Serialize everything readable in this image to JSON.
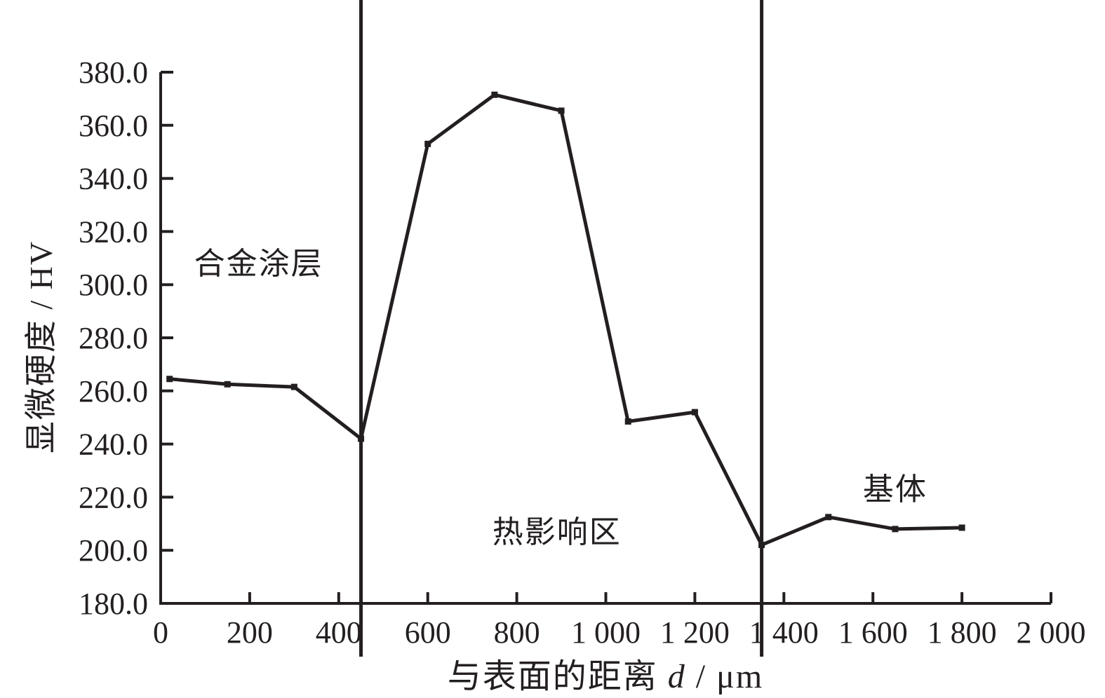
{
  "page": {
    "background_color": "#ffffff",
    "ink_color": "#231f20"
  },
  "chart_data": {
    "type": "line",
    "title": "",
    "xlabel": "与表面的距离 d / μm",
    "xlabel_parts": [
      {
        "text": "与表面的距离 ",
        "italic": false
      },
      {
        "text": "d",
        "italic": true
      },
      {
        "text": " / μm",
        "italic": false
      }
    ],
    "ylabel": "显微硬度 / HV",
    "xlim": [
      0,
      2000
    ],
    "ylim": [
      180,
      380
    ],
    "grid": false,
    "legend_position": "none",
    "x_ticks": {
      "values": [
        0,
        200,
        400,
        600,
        800,
        1000,
        1200,
        1400,
        1600,
        1800,
        2000
      ],
      "labels": [
        "0",
        "200",
        "400",
        "600",
        "800",
        "1 000",
        "1 200",
        "1 400",
        "1 600",
        "1 800",
        "2 000"
      ]
    },
    "y_ticks": {
      "values": [
        180,
        200,
        220,
        240,
        260,
        280,
        300,
        320,
        340,
        360,
        380
      ],
      "labels": [
        "180.0",
        "200.0",
        "220.0",
        "240.0",
        "260.0",
        "280.0",
        "300.0",
        "320.0",
        "340.0",
        "360.0",
        "380.0"
      ]
    },
    "series": [
      {
        "name": "显微硬度",
        "color": "#231f20",
        "marker": "square",
        "points": [
          [
            20,
            264.5
          ],
          [
            150,
            262.5
          ],
          [
            300,
            261.5
          ],
          [
            450,
            242.0
          ],
          [
            600,
            353.0
          ],
          [
            750,
            371.5
          ],
          [
            900,
            365.5
          ],
          [
            1050,
            248.5
          ],
          [
            1200,
            252.0
          ],
          [
            1350,
            202.0
          ],
          [
            1500,
            212.5
          ],
          [
            1650,
            208.0
          ],
          [
            1800,
            208.5
          ]
        ]
      }
    ],
    "region_dividers_x": [
      450,
      1350
    ],
    "annotations": [
      {
        "text": "合金涂层",
        "x": 220,
        "y": 309
      },
      {
        "text": "热影响区",
        "x": 890,
        "y": 208
      },
      {
        "text": "基体",
        "x": 1650,
        "y": 224
      }
    ]
  }
}
